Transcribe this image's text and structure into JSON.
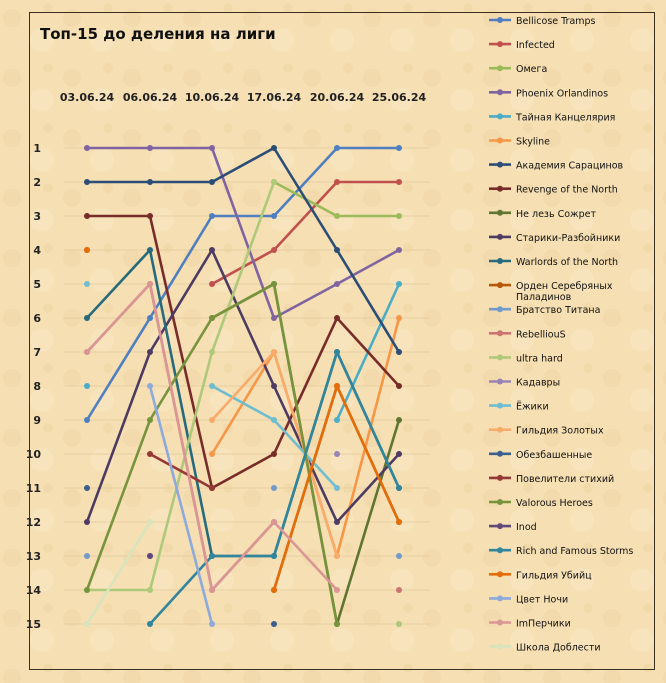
{
  "chart_data": {
    "type": "line",
    "title": "Топ-15 до деления на лиги",
    "x": [
      "03.06.24",
      "06.06.24",
      "10.06.24",
      "17.06.24",
      "20.06.24",
      "25.06.24"
    ],
    "y_ticks": [
      1,
      2,
      3,
      4,
      5,
      6,
      7,
      8,
      9,
      10,
      11,
      12,
      13,
      14,
      15
    ],
    "ylim": [
      1,
      15
    ],
    "y_inverted": true,
    "grid": true,
    "legend_position": "right",
    "background": "#f5dfb3",
    "series": [
      {
        "name": "Bellicose Tramps",
        "color": "#4f7fbf",
        "values": [
          9,
          6,
          3,
          3,
          1,
          1
        ]
      },
      {
        "name": "Infected",
        "color": "#c0504d",
        "values": [
          null,
          null,
          5,
          4,
          2,
          2
        ]
      },
      {
        "name": "Омега",
        "color": "#9bbb59",
        "values": [
          null,
          null,
          null,
          2,
          3,
          3
        ]
      },
      {
        "name": "Phoenix Orlandinos",
        "color": "#8064a2",
        "values": [
          1,
          1,
          1,
          6,
          5,
          4
        ]
      },
      {
        "name": "Тайная Канцелярия",
        "color": "#4bacc6",
        "values": [
          8,
          null,
          null,
          null,
          9,
          5
        ]
      },
      {
        "name": "Skyline",
        "color": "#f79646",
        "values": [
          null,
          null,
          10,
          7,
          13,
          6
        ]
      },
      {
        "name": "Академия Сарацинов",
        "color": "#2c4d75",
        "values": [
          2,
          2,
          2,
          1,
          4,
          7
        ]
      },
      {
        "name": "Revenge of the North",
        "color": "#772c2a",
        "values": [
          3,
          3,
          11,
          10,
          6,
          8
        ]
      },
      {
        "name": "Не лезь Сожрет",
        "color": "#5f7530",
        "values": [
          null,
          null,
          6,
          5,
          15,
          9
        ]
      },
      {
        "name": "Старики-Разбойники",
        "color": "#4d3b62",
        "values": [
          12,
          7,
          4,
          8,
          12,
          10
        ]
      },
      {
        "name": "Warlords of the North",
        "color": "#276a7c",
        "values": [
          6,
          4,
          13,
          13,
          7,
          11
        ]
      },
      {
        "name": "Орден Серебряных Паладинов",
        "color": "#b65708",
        "values": [
          4,
          null,
          null,
          14,
          8,
          12
        ]
      },
      {
        "name": "Братство Титана",
        "color": "#729aca",
        "values": [
          13,
          null,
          null,
          11,
          null,
          13
        ]
      },
      {
        "name": "RebelliouS",
        "color": "#cd7371",
        "values": [
          7,
          5,
          14,
          12,
          null,
          14
        ]
      },
      {
        "name": "ultra hard",
        "color": "#afc97a",
        "values": [
          14,
          14,
          7,
          2,
          null,
          15
        ]
      },
      {
        "name": "Кадавры",
        "color": "#9983b5",
        "values": [
          null,
          13,
          null,
          null,
          10,
          null
        ]
      },
      {
        "name": "Ёжики",
        "color": "#6fbdd1",
        "values": [
          5,
          null,
          8,
          9,
          11,
          null
        ]
      },
      {
        "name": "Гильдия Золотых",
        "color": "#f9ab6b",
        "values": [
          null,
          null,
          9,
          7,
          13,
          null
        ]
      },
      {
        "name": "Обезбашенные",
        "color": "#3a5f8f",
        "values": [
          11,
          null,
          null,
          15,
          null,
          null
        ]
      },
      {
        "name": "Повелители стихий",
        "color": "#953735",
        "values": [
          null,
          10,
          11,
          null,
          null,
          null
        ]
      },
      {
        "name": "Valorous Heroes",
        "color": "#77933c",
        "values": [
          14,
          9,
          6,
          5,
          15,
          null
        ]
      },
      {
        "name": "Inod",
        "color": "#60497a",
        "values": [
          null,
          13,
          null,
          null,
          null,
          null
        ]
      },
      {
        "name": "Rich and Famous Storms",
        "color": "#31859c",
        "values": [
          null,
          15,
          13,
          13,
          7,
          11
        ]
      },
      {
        "name": "Гильдия Убийц",
        "color": "#e46c0a",
        "values": [
          4,
          null,
          null,
          14,
          8,
          12
        ]
      },
      {
        "name": "Цвет Ночи",
        "color": "#8eaadb",
        "values": [
          null,
          8,
          15,
          null,
          null,
          null
        ]
      },
      {
        "name": "ImПерчики",
        "color": "#d99694",
        "values": [
          7,
          5,
          14,
          12,
          14,
          null
        ]
      },
      {
        "name": "Школа Доблести",
        "color": "#d7e4bd",
        "values": [
          15,
          12,
          null,
          null,
          null,
          null
        ]
      }
    ]
  }
}
